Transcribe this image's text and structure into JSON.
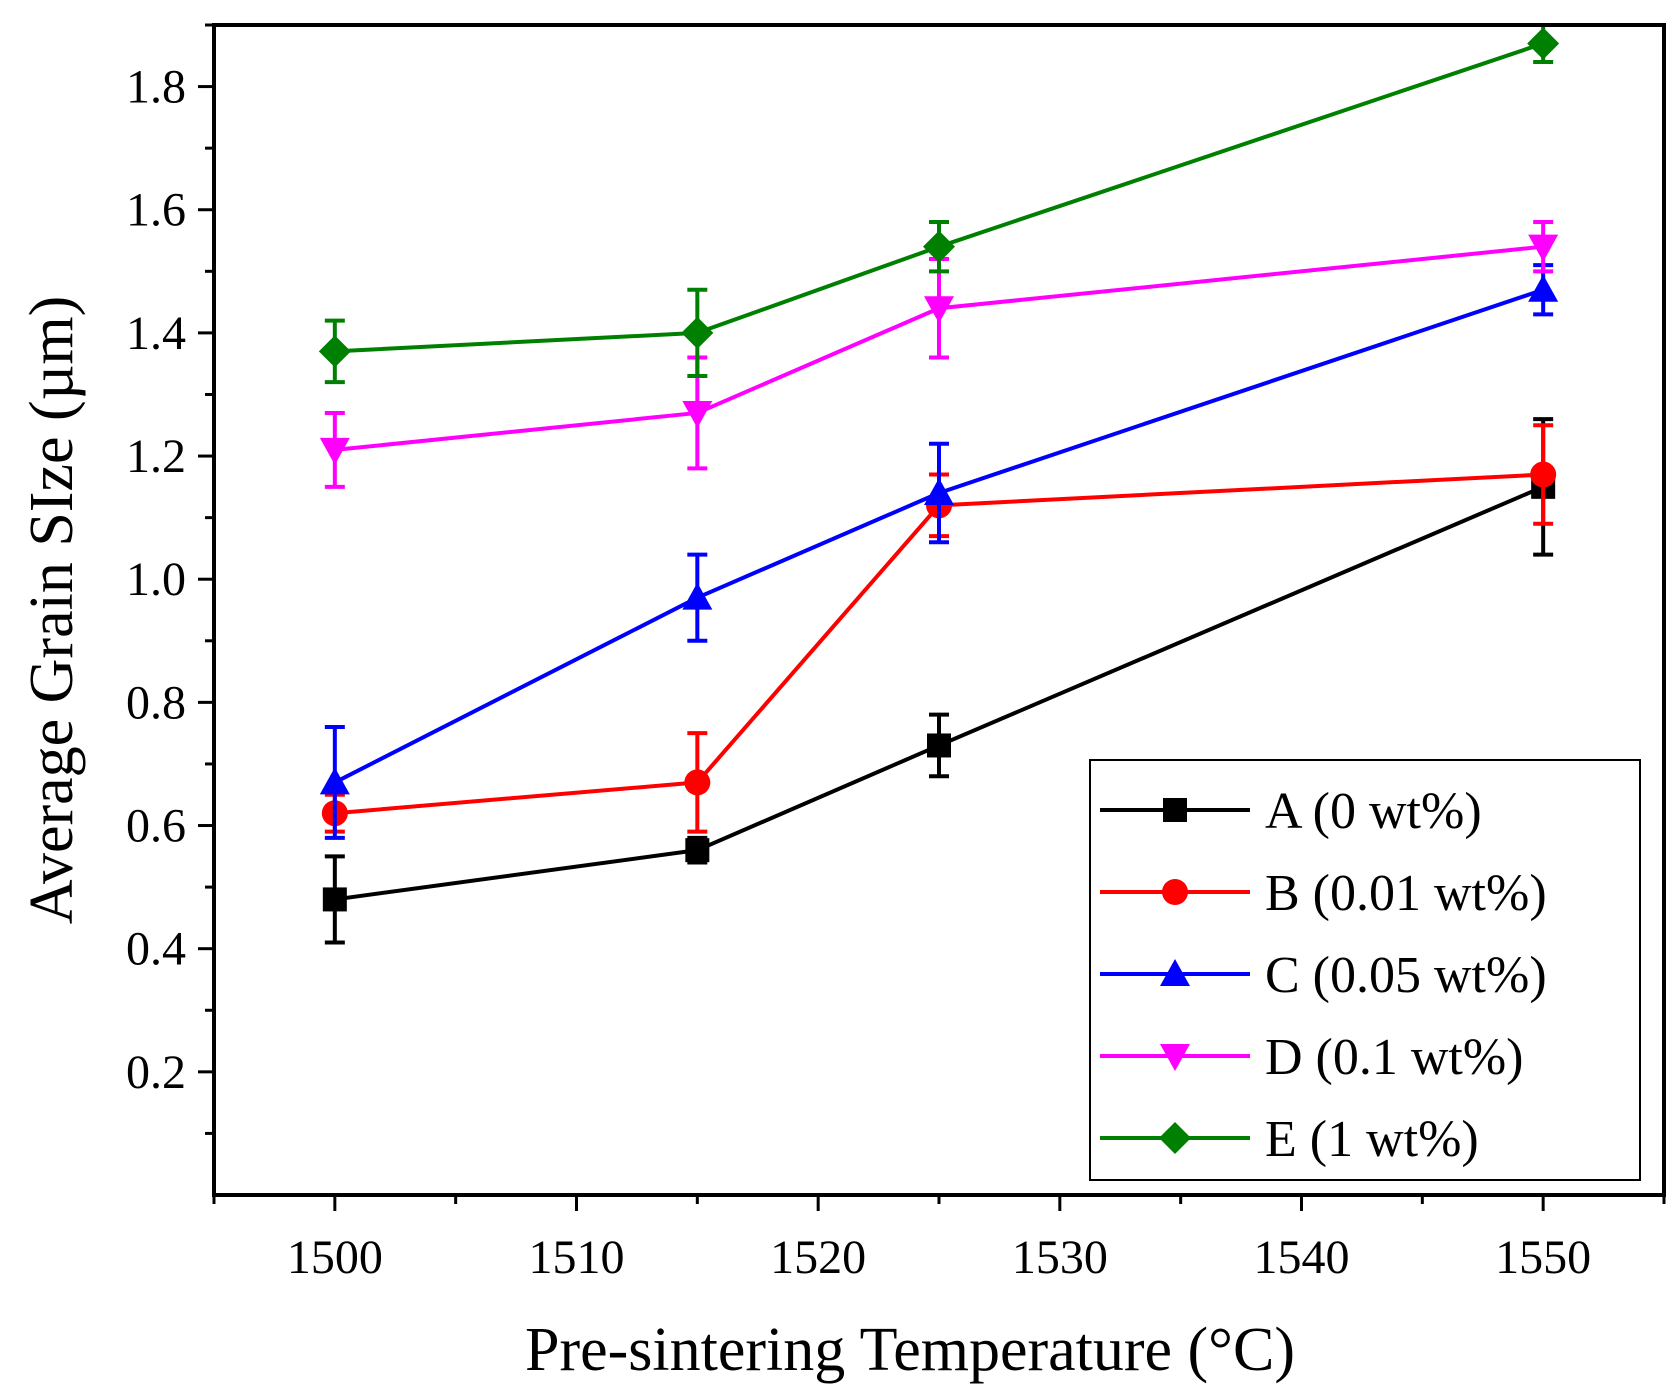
{
  "chart_data": {
    "type": "line",
    "title": "",
    "xlabel": "Pre-sintering Temperature (°C)",
    "ylabel": "Average Grain SIze (µm)",
    "xlim": [
      1495,
      1555
    ],
    "ylim": [
      0.0,
      1.9
    ],
    "x_ticks": [
      1500,
      1510,
      1520,
      1530,
      1540,
      1550
    ],
    "x_tick_labels": [
      "1500",
      "1510",
      "1520",
      "1530",
      "1540",
      "1550"
    ],
    "y_ticks": [
      0.2,
      0.4,
      0.6,
      0.8,
      1.0,
      1.2,
      1.4,
      1.6,
      1.8
    ],
    "y_tick_labels": [
      "0.2",
      "0.4",
      "0.6",
      "0.8",
      "1.0",
      "1.2",
      "1.4",
      "1.6",
      "1.8"
    ],
    "grid": false,
    "legend_position": "bottom-right",
    "x": [
      1500,
      1515,
      1525,
      1550
    ],
    "series": [
      {
        "name": "A (0 wt%)",
        "color": "#000000",
        "marker": "square",
        "values": [
          0.48,
          0.56,
          0.73,
          1.15
        ],
        "errors": [
          0.07,
          0.02,
          0.05,
          0.11
        ]
      },
      {
        "name": "B (0.01 wt%)",
        "color": "#ff0000",
        "marker": "circle",
        "values": [
          0.62,
          0.67,
          1.12,
          1.17
        ],
        "errors": [
          0.03,
          0.08,
          0.05,
          0.08
        ]
      },
      {
        "name": "C (0.05 wt%)",
        "color": "#0000ff",
        "marker": "triangle-up",
        "values": [
          0.67,
          0.97,
          1.14,
          1.47
        ],
        "errors": [
          0.09,
          0.07,
          0.08,
          0.04
        ]
      },
      {
        "name": "D (0.1 wt%)",
        "color": "#ff00ff",
        "marker": "triangle-down",
        "values": [
          1.21,
          1.27,
          1.44,
          1.54
        ],
        "errors": [
          0.06,
          0.09,
          0.08,
          0.04
        ]
      },
      {
        "name": "E (1 wt%)",
        "color": "#008000",
        "marker": "diamond",
        "values": [
          1.37,
          1.4,
          1.54,
          1.87
        ],
        "errors": [
          0.05,
          0.07,
          0.04,
          0.03
        ]
      }
    ]
  }
}
